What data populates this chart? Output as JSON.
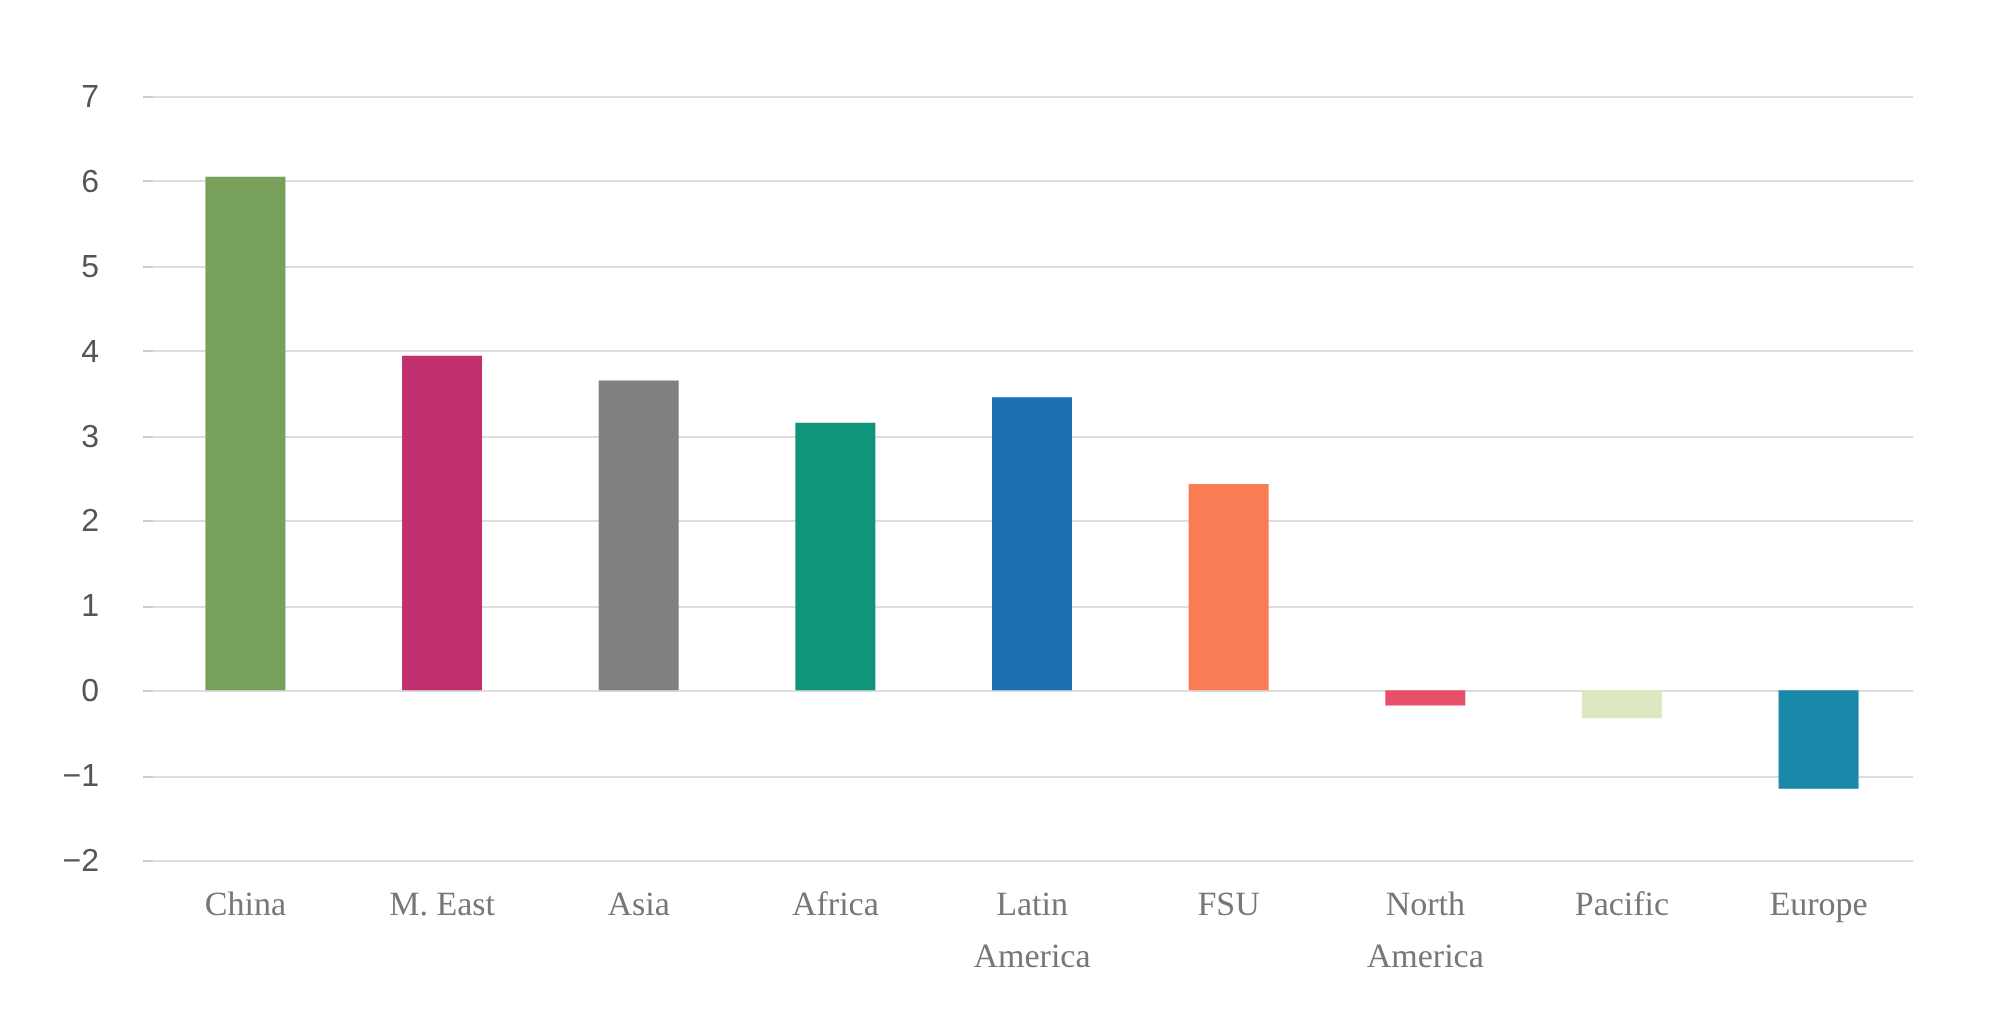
{
  "chart_data": {
    "type": "bar",
    "categories": [
      "China",
      "M. East",
      "Asia",
      "Africa",
      "Latin America",
      "FSU",
      "North America",
      "Pacific",
      "Europe"
    ],
    "values": [
      6.05,
      3.94,
      3.65,
      3.15,
      3.45,
      2.43,
      -0.18,
      -0.33,
      -1.16
    ],
    "colors": [
      "#77a05a",
      "#c0306f",
      "#808080",
      "#10957a",
      "#1a70b0",
      "#f97c55",
      "#e8506a",
      "#dde8c0",
      "#1a88a8"
    ],
    "ylim": [
      -2,
      7
    ],
    "yticks": [
      -2,
      -1,
      0,
      1,
      2,
      3,
      4,
      5,
      6,
      7
    ],
    "grid": "y",
    "legend": false
  }
}
